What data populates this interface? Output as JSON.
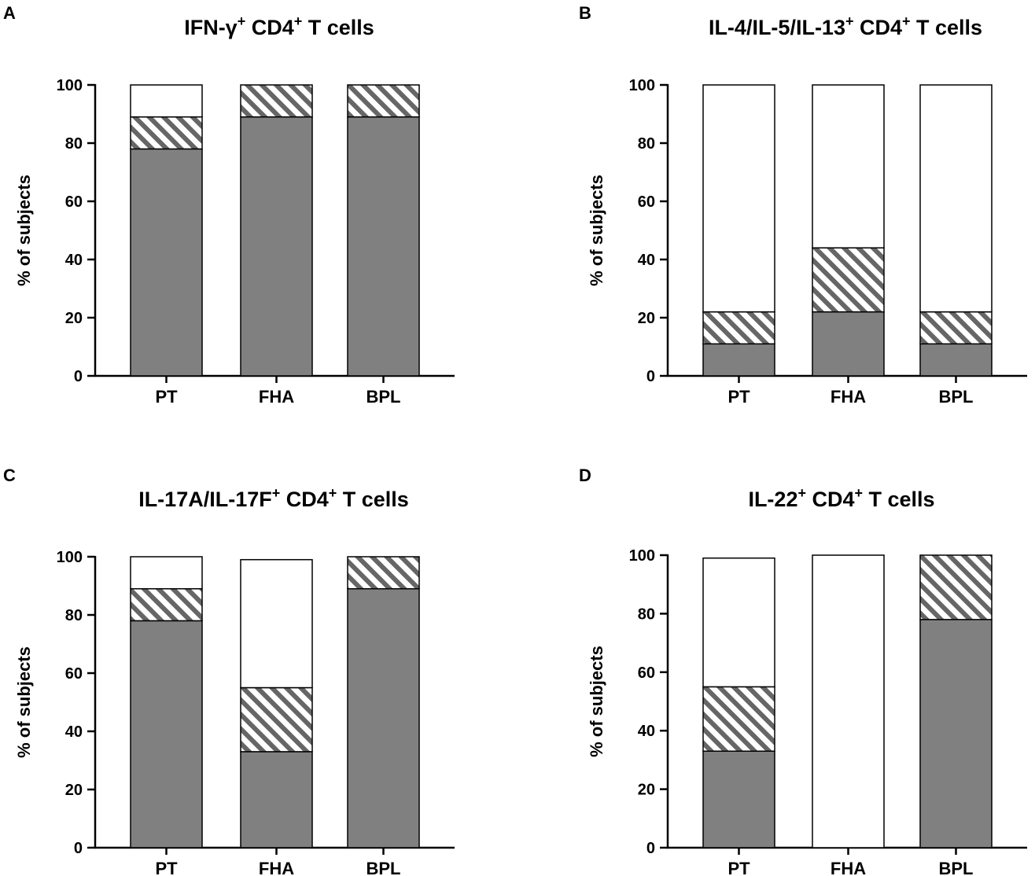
{
  "colors": {
    "solid": "#808080",
    "hatch": "#666666",
    "empty": "#ffffff",
    "stroke": "#000000"
  },
  "chart_data": [
    {
      "panel": "A",
      "type": "bar",
      "stacked": true,
      "title": {
        "main": "IFN-γ",
        "sup1": "+",
        "mid": " CD4",
        "sup2": "+",
        "tail": " T cells"
      },
      "ylabel": "% of subjects",
      "ylim": [
        0,
        100
      ],
      "yticks": [
        0,
        20,
        40,
        60,
        80,
        100
      ],
      "categories": [
        "PT",
        "FHA",
        "BPL"
      ],
      "series": [
        {
          "name": "solid",
          "values": [
            78,
            89,
            89
          ]
        },
        {
          "name": "hatched",
          "values": [
            11,
            11,
            11
          ]
        },
        {
          "name": "open",
          "values": [
            11,
            0,
            0
          ]
        }
      ]
    },
    {
      "panel": "B",
      "type": "bar",
      "stacked": true,
      "title": {
        "main": "IL-4/IL-5/IL-13",
        "sup1": "+",
        "mid": " CD4",
        "sup2": "+",
        "tail": " T cells"
      },
      "ylabel": "% of subjects",
      "ylim": [
        0,
        100
      ],
      "yticks": [
        0,
        20,
        40,
        60,
        80,
        100
      ],
      "categories": [
        "PT",
        "FHA",
        "BPL"
      ],
      "series": [
        {
          "name": "solid",
          "values": [
            11,
            22,
            11
          ]
        },
        {
          "name": "hatched",
          "values": [
            11,
            22,
            11
          ]
        },
        {
          "name": "open",
          "values": [
            78,
            56,
            78
          ]
        }
      ]
    },
    {
      "panel": "C",
      "type": "bar",
      "stacked": true,
      "title": {
        "main": "IL-17A/IL-17F",
        "sup1": "+",
        "mid": " CD4",
        "sup2": "+",
        "tail": " T cells"
      },
      "ylabel": "% of subjects",
      "ylim": [
        0,
        100
      ],
      "yticks": [
        0,
        20,
        40,
        60,
        80,
        100
      ],
      "categories": [
        "PT",
        "FHA",
        "BPL"
      ],
      "series": [
        {
          "name": "solid",
          "values": [
            78,
            33,
            89
          ]
        },
        {
          "name": "hatched",
          "values": [
            11,
            22,
            11
          ]
        },
        {
          "name": "open",
          "values": [
            11,
            44,
            0
          ]
        }
      ]
    },
    {
      "panel": "D",
      "type": "bar",
      "stacked": true,
      "title": {
        "main": "IL-22",
        "sup1": "+",
        "mid": " CD4",
        "sup2": "+",
        "tail": " T cells"
      },
      "ylabel": "% of subjects",
      "ylim": [
        0,
        100
      ],
      "yticks": [
        0,
        20,
        40,
        60,
        80,
        100
      ],
      "categories": [
        "PT",
        "FHA",
        "BPL"
      ],
      "series": [
        {
          "name": "solid",
          "values": [
            33,
            0,
            78
          ]
        },
        {
          "name": "hatched",
          "values": [
            22,
            0,
            22
          ]
        },
        {
          "name": "open",
          "values": [
            44,
            100,
            0
          ]
        }
      ]
    }
  ]
}
